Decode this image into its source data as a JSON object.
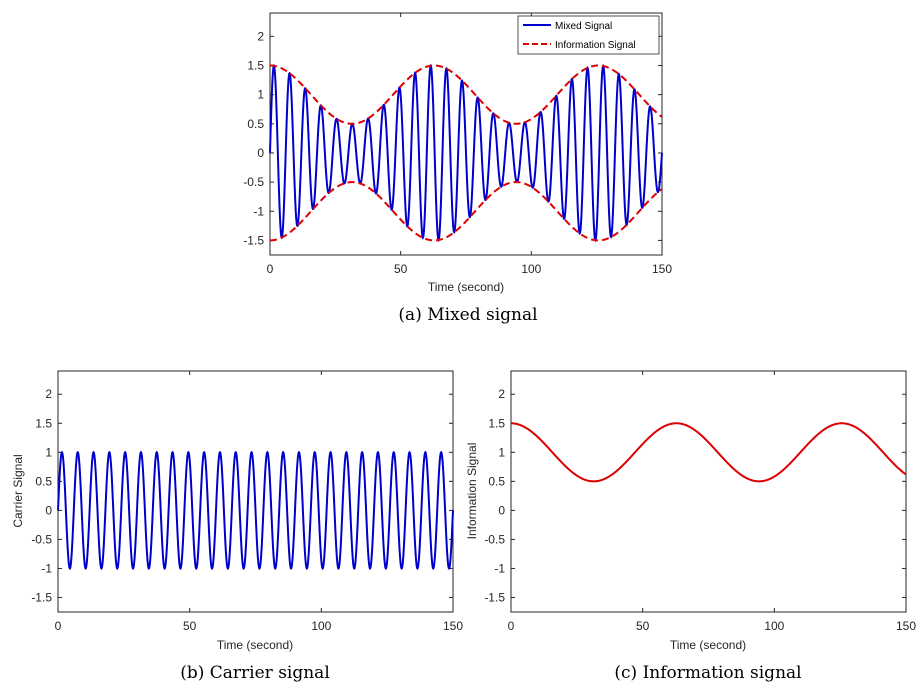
{
  "panels": [
    {
      "id": "a",
      "caption": "(a)  Mixed signal",
      "xlabel": "Time (second)",
      "ylabel": "",
      "legend": [
        "Mixed Signal",
        "Information Signal"
      ]
    },
    {
      "id": "b",
      "caption": "(b)  Carrier signal",
      "xlabel": "Time (second)",
      "ylabel": "Carrier Signal"
    },
    {
      "id": "c",
      "caption": "(c)  Information signal",
      "xlabel": "Time (second)",
      "ylabel": "Information Signal"
    }
  ],
  "chart_data": [
    {
      "type": "line",
      "title": "",
      "xlabel": "Time (second)",
      "ylabel": "",
      "xlim": [
        0,
        150
      ],
      "ylim": [
        -1.75,
        2.4
      ],
      "xticks": [
        0,
        50,
        100,
        150
      ],
      "yticks": [
        -1.5,
        -1,
        -0.5,
        0,
        0.5,
        1,
        1.5,
        2
      ],
      "grid": false,
      "legend_position": "top-right",
      "series": [
        {
          "name": "Mixed Signal",
          "color": "#0000cc",
          "style": "solid",
          "formula": "(1 + 0.5*cos(2*pi*t/62.8)) * sin(2*pi*t/6)",
          "x_range": [
            0,
            150
          ]
        },
        {
          "name": "Information Signal",
          "color": "#dd0000",
          "style": "dashed",
          "formula": "±(1 + 0.5*cos(2*pi*t/62.8))",
          "x_range": [
            0,
            150
          ]
        }
      ]
    },
    {
      "type": "line",
      "title": "",
      "xlabel": "Time (second)",
      "ylabel": "Carrier Signal",
      "xlim": [
        0,
        150
      ],
      "ylim": [
        -1.75,
        2.4
      ],
      "xticks": [
        0,
        50,
        100,
        150
      ],
      "yticks": [
        -1.5,
        -1,
        -0.5,
        0,
        0.5,
        1,
        1.5,
        2
      ],
      "grid": false,
      "series": [
        {
          "name": "",
          "color": "#0000cc",
          "style": "solid",
          "formula": "sin(2*pi*t/6)",
          "amplitude": 1,
          "period": 6,
          "x_range": [
            0,
            150
          ]
        }
      ]
    },
    {
      "type": "line",
      "title": "",
      "xlabel": "Time (second)",
      "ylabel": "Information Signal",
      "xlim": [
        0,
        150
      ],
      "ylim": [
        -1.75,
        2.4
      ],
      "xticks": [
        0,
        50,
        100,
        150
      ],
      "yticks": [
        -1.5,
        -1,
        -0.5,
        0,
        0.5,
        1,
        1.5,
        2
      ],
      "grid": false,
      "series": [
        {
          "name": "",
          "color": "#dd0000",
          "style": "solid",
          "formula": "1 + 0.5*cos(2*pi*t/62.8)",
          "max": 1.5,
          "min": 0.5,
          "period": 62.8,
          "x_range": [
            0,
            150
          ]
        }
      ]
    }
  ]
}
